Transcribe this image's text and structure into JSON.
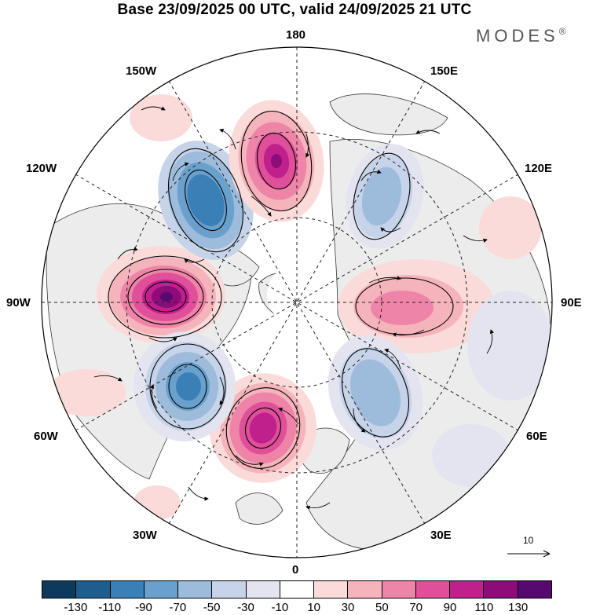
{
  "title": "Base 23/09/2025 00 UTC, valid 24/09/2025 21 UTC",
  "brand": "MODES",
  "brand_mark": "®",
  "map": {
    "projection": "north polar stereographic",
    "longitude_labels": {
      "top": "180",
      "bottom": "0",
      "left": "90W",
      "right": "90E",
      "upper_left_1": "150W",
      "upper_left_2": "120W",
      "lower_left_1": "60W",
      "lower_left_2": "30W",
      "upper_right_1": "150E",
      "upper_right_2": "120E",
      "lower_right_1": "60E",
      "lower_right_2": "30E"
    },
    "anomaly_centers": [
      {
        "sign": "positive",
        "lon_sector": "90W",
        "strength": 130
      },
      {
        "sign": "negative",
        "lon_sector": "120W",
        "strength": -90
      },
      {
        "sign": "positive",
        "lon_sector": "160W",
        "strength": 110
      },
      {
        "sign": "negative",
        "lon_sector": "150E",
        "strength": -50
      },
      {
        "sign": "positive",
        "lon_sector": "90E",
        "strength": 50
      },
      {
        "sign": "negative",
        "lon_sector": "40E",
        "strength": -50
      },
      {
        "sign": "positive",
        "lon_sector": "20W",
        "strength": 110
      },
      {
        "sign": "negative",
        "lon_sector": "60W",
        "strength": -90
      }
    ]
  },
  "reference_vector": {
    "value": "10"
  },
  "colorbar": {
    "colors": [
      "#0d3a5c",
      "#1e5d8c",
      "#3a7fb5",
      "#6aa0cc",
      "#9dbcdc",
      "#c6d3e8",
      "#e4e4f0",
      "#ffffff",
      "#fbdada",
      "#f5b4bc",
      "#ee85a8",
      "#e0509a",
      "#c0208c",
      "#8e0c7a",
      "#560a70"
    ],
    "ticks": [
      "-130",
      "-110",
      "-90",
      "-70",
      "-50",
      "-30",
      "-10",
      "10",
      "30",
      "50",
      "70",
      "90",
      "110",
      "130"
    ]
  },
  "colors": {
    "land": "#ececec",
    "ocean": "#ffffff",
    "graticule": "#222222"
  }
}
